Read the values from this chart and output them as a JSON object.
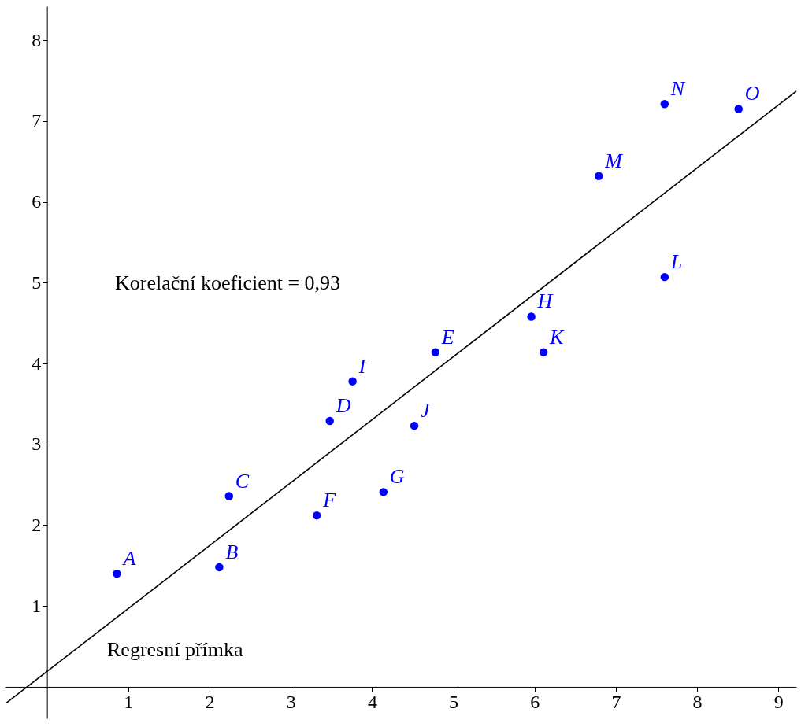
{
  "chart_data": {
    "type": "scatter",
    "xlim": [
      -0.52,
      9.22
    ],
    "ylim": [
      -0.39,
      8.42
    ],
    "xticks": [
      1,
      2,
      3,
      4,
      5,
      6,
      7,
      8,
      9
    ],
    "yticks": [
      1,
      2,
      3,
      4,
      5,
      6,
      7,
      8
    ],
    "grid": false,
    "marker": "circle",
    "series": [
      {
        "color": "#0000ff",
        "x": [
          0.86,
          2.12,
          2.24,
          3.48,
          4.78,
          3.32,
          4.14,
          5.96,
          3.76,
          4.52,
          6.11,
          7.6,
          6.79,
          7.6,
          8.51
        ],
        "values": [
          1.4,
          1.48,
          2.36,
          3.29,
          4.14,
          2.12,
          2.41,
          4.58,
          3.78,
          3.23,
          4.14,
          5.07,
          6.32,
          7.21,
          7.15
        ],
        "value_labels": [
          "A",
          "B",
          "C",
          "D",
          "E",
          "F",
          "G",
          "H",
          "I",
          "J",
          "K",
          "L",
          "M",
          "N",
          "O"
        ]
      },
      {
        "type": "line",
        "marker": "none",
        "color": "#000000",
        "x": [
          -0.5,
          9.22
        ],
        "values": [
          -0.2,
          7.37
        ]
      }
    ],
    "annotations": [
      "Korelační koeficient = 0,93",
      "Regresní přímka"
    ]
  }
}
